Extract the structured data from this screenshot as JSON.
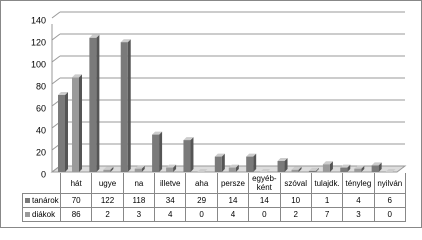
{
  "chart_data": {
    "type": "bar",
    "categories": [
      "hát",
      "ugye",
      "na",
      "illetve",
      "aha",
      "persze",
      "egyéb-ként",
      "szóval",
      "tulajdk.",
      "tényleg",
      "nyilván"
    ],
    "series": [
      {
        "name": "tanárok",
        "color": "#7a7a7a",
        "values": [
          70,
          122,
          118,
          34,
          29,
          14,
          14,
          10,
          1,
          4,
          6
        ]
      },
      {
        "name": "diákok",
        "color": "#9a9a9a",
        "values": [
          86,
          2,
          3,
          4,
          0,
          4,
          0,
          2,
          7,
          3,
          0
        ]
      }
    ],
    "ylim": [
      0,
      140
    ],
    "yticks": [
      0,
      20,
      40,
      60,
      80,
      100,
      120,
      140
    ],
    "grid": true
  }
}
